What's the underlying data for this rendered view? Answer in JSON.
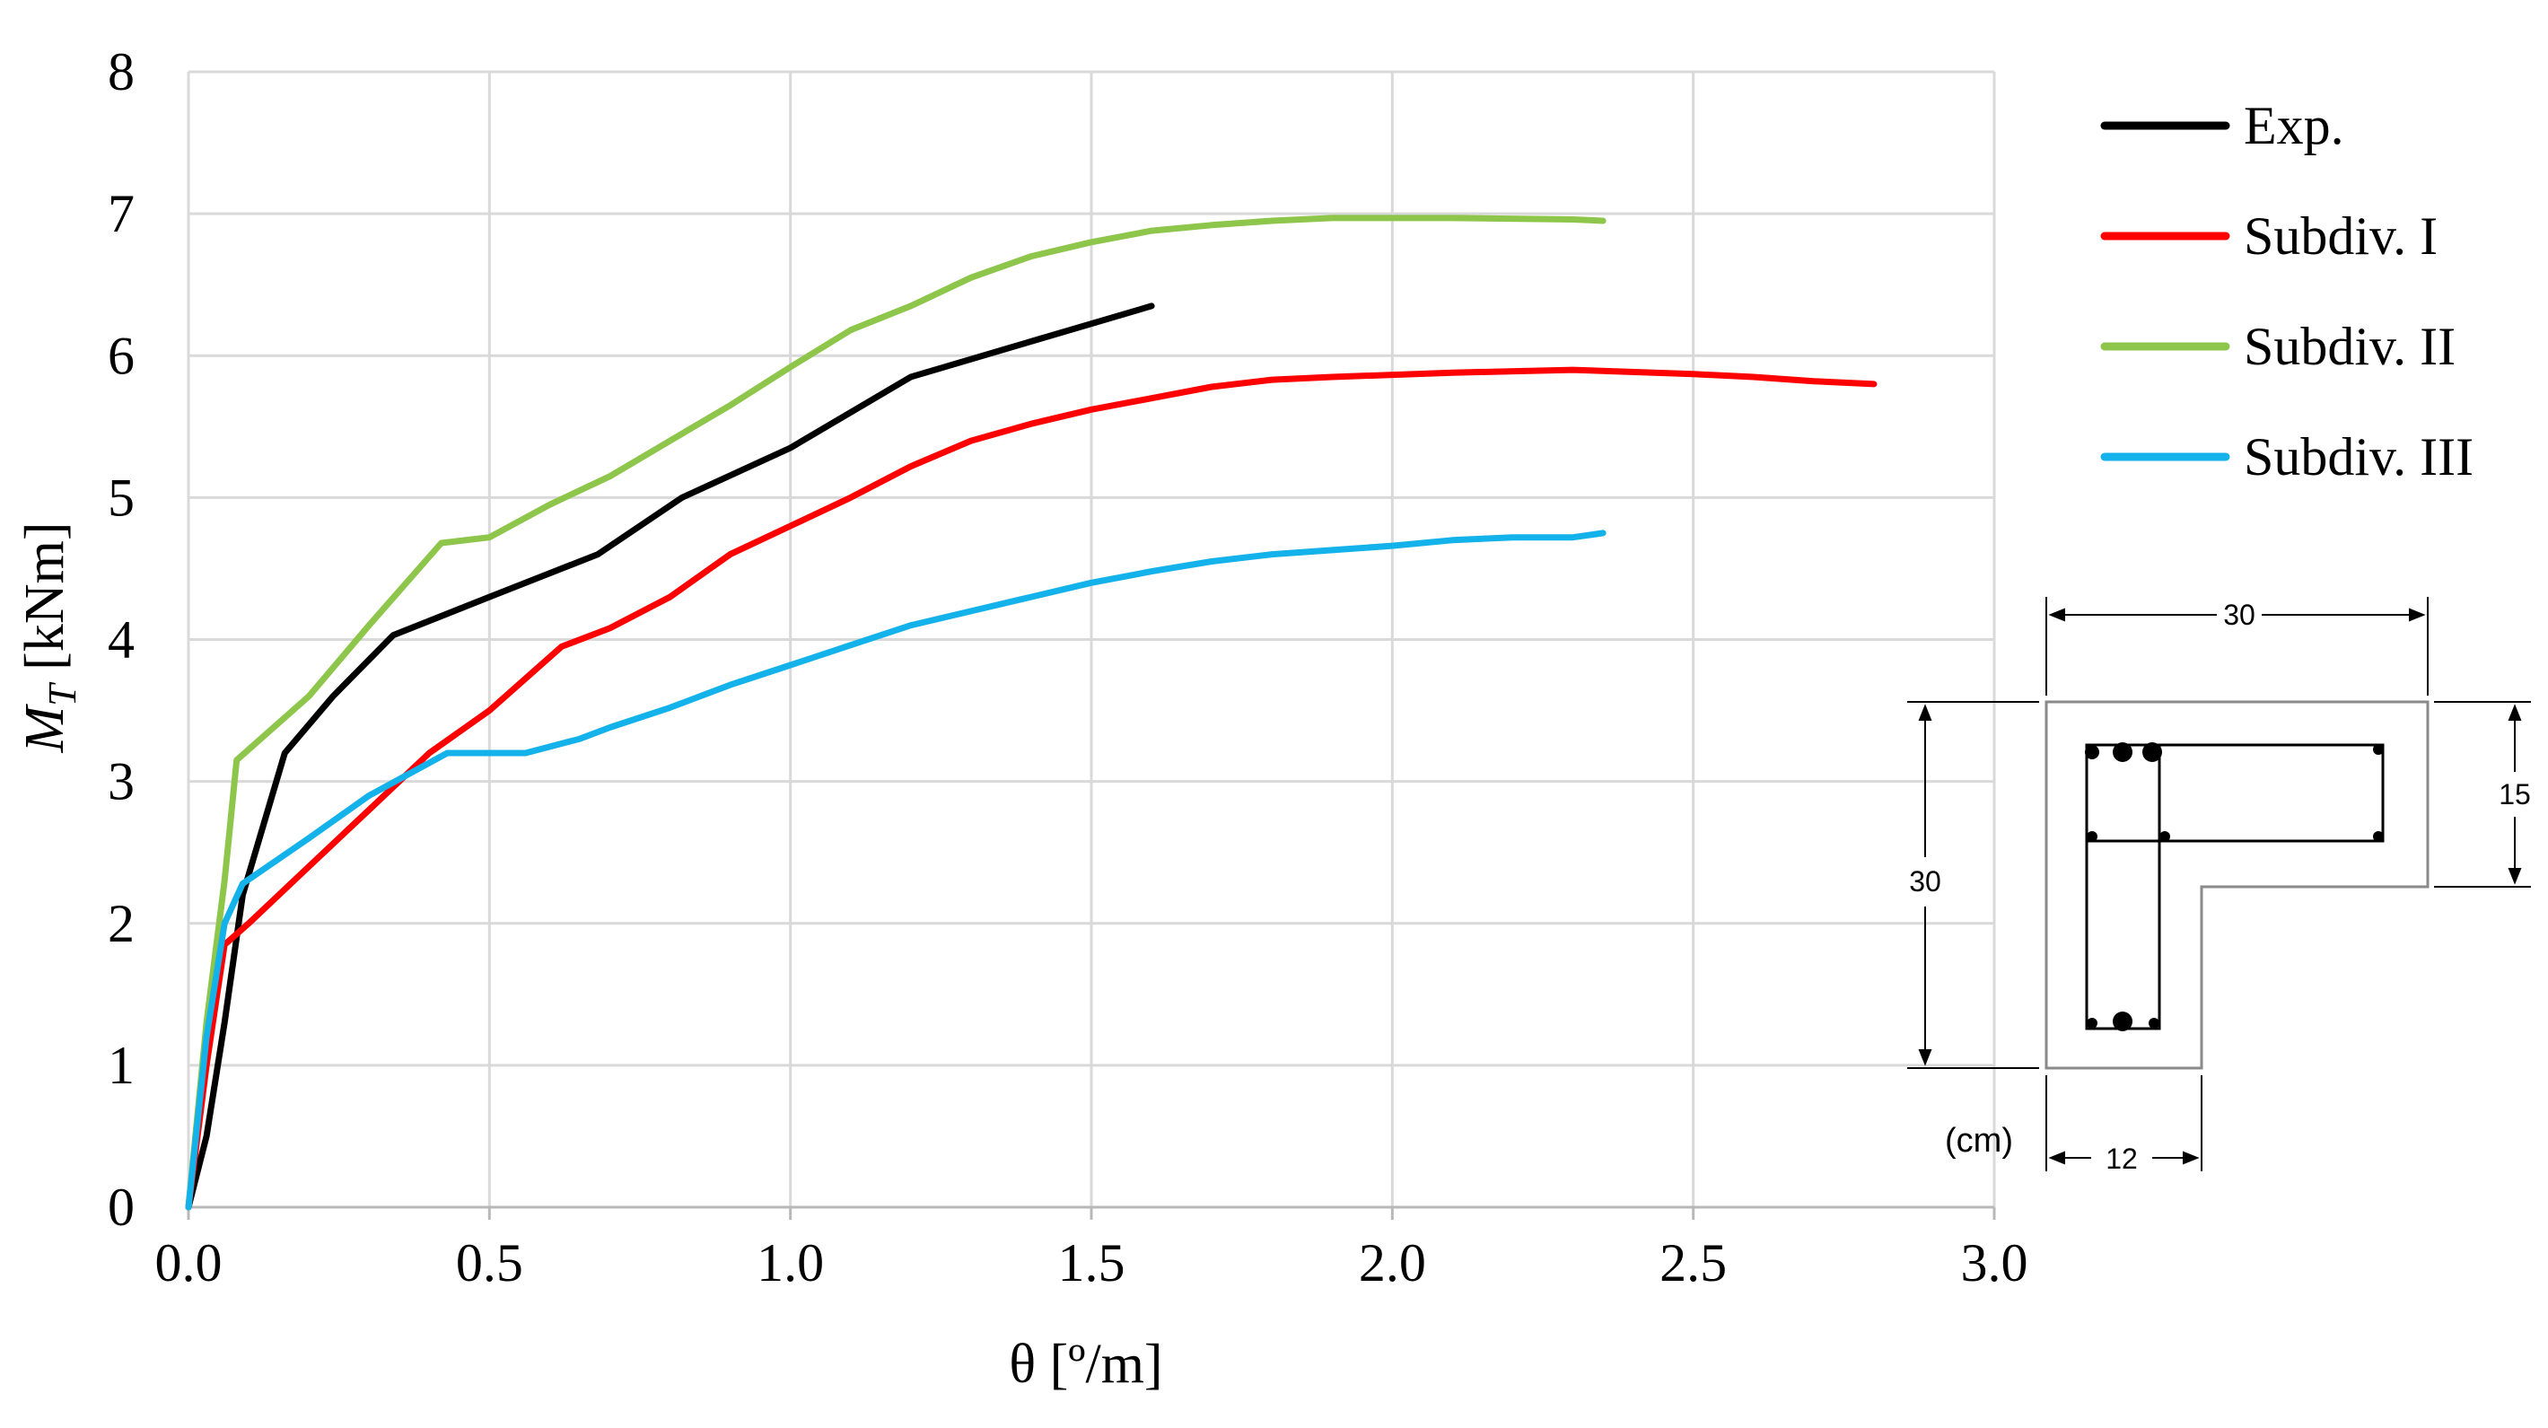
{
  "chart_data": {
    "type": "line",
    "title": "",
    "xlabel": "θ [º/m]",
    "ylabel": "MT [kNm]",
    "ylabel_main": "M",
    "ylabel_sub": "T",
    "ylabel_unit": " [kNm]",
    "xlim": [
      0,
      3.0
    ],
    "ylim": [
      0,
      8
    ],
    "grid": true,
    "legend_position": "top-right",
    "x_ticks": [
      0,
      0.5,
      1.0,
      1.5,
      2.0,
      2.5,
      3.0
    ],
    "x_tick_labels": [
      "0.0",
      "0.5",
      "1.0",
      "1.5",
      "2.0",
      "2.5",
      "3.0"
    ],
    "y_ticks": [
      0,
      1,
      2,
      3,
      4,
      5,
      6,
      7,
      8
    ],
    "y_tick_labels": [
      "0",
      "1",
      "2",
      "3",
      "4",
      "5",
      "6",
      "7",
      "8"
    ],
    "series": [
      {
        "name": "Exp.",
        "color": "#000000",
        "points": [
          [
            0,
            0
          ],
          [
            0.03,
            0.5
          ],
          [
            0.06,
            1.3
          ],
          [
            0.09,
            2.2
          ],
          [
            0.16,
            3.2
          ],
          [
            0.24,
            3.6
          ],
          [
            0.34,
            4.03
          ],
          [
            0.5,
            4.3
          ],
          [
            0.68,
            4.6
          ],
          [
            0.82,
            5.0
          ],
          [
            1.0,
            5.35
          ],
          [
            1.2,
            5.85
          ],
          [
            1.4,
            6.1
          ],
          [
            1.6,
            6.35
          ]
        ]
      },
      {
        "name": "Subdiv. I",
        "color": "#ff0000",
        "points": [
          [
            0,
            0
          ],
          [
            0.03,
            1.0
          ],
          [
            0.06,
            1.85
          ],
          [
            0.1,
            2.0
          ],
          [
            0.2,
            2.4
          ],
          [
            0.3,
            2.8
          ],
          [
            0.4,
            3.2
          ],
          [
            0.5,
            3.5
          ],
          [
            0.62,
            3.95
          ],
          [
            0.7,
            4.08
          ],
          [
            0.8,
            4.3
          ],
          [
            0.9,
            4.6
          ],
          [
            1.0,
            4.8
          ],
          [
            1.1,
            5.0
          ],
          [
            1.2,
            5.22
          ],
          [
            1.3,
            5.4
          ],
          [
            1.4,
            5.52
          ],
          [
            1.5,
            5.62
          ],
          [
            1.6,
            5.7
          ],
          [
            1.7,
            5.78
          ],
          [
            1.8,
            5.83
          ],
          [
            1.9,
            5.85
          ],
          [
            2.1,
            5.88
          ],
          [
            2.3,
            5.9
          ],
          [
            2.5,
            5.87
          ],
          [
            2.6,
            5.85
          ],
          [
            2.7,
            5.82
          ],
          [
            2.8,
            5.8
          ]
        ]
      },
      {
        "name": "Subdiv. II",
        "color": "#8dc64a",
        "points": [
          [
            0,
            0
          ],
          [
            0.03,
            1.3
          ],
          [
            0.06,
            2.3
          ],
          [
            0.08,
            3.15
          ],
          [
            0.2,
            3.6
          ],
          [
            0.3,
            4.1
          ],
          [
            0.42,
            4.68
          ],
          [
            0.5,
            4.72
          ],
          [
            0.6,
            4.95
          ],
          [
            0.7,
            5.15
          ],
          [
            0.8,
            5.4
          ],
          [
            0.9,
            5.65
          ],
          [
            1.0,
            5.92
          ],
          [
            1.1,
            6.18
          ],
          [
            1.2,
            6.35
          ],
          [
            1.3,
            6.55
          ],
          [
            1.4,
            6.7
          ],
          [
            1.5,
            6.8
          ],
          [
            1.6,
            6.88
          ],
          [
            1.7,
            6.92
          ],
          [
            1.8,
            6.95
          ],
          [
            1.9,
            6.97
          ],
          [
            2.1,
            6.97
          ],
          [
            2.3,
            6.96
          ],
          [
            2.35,
            6.95
          ]
        ]
      },
      {
        "name": "Subdiv. III",
        "color": "#14b2ea",
        "points": [
          [
            0,
            0
          ],
          [
            0.03,
            1.2
          ],
          [
            0.06,
            2.0
          ],
          [
            0.09,
            2.28
          ],
          [
            0.2,
            2.6
          ],
          [
            0.3,
            2.9
          ],
          [
            0.43,
            3.2
          ],
          [
            0.56,
            3.2
          ],
          [
            0.65,
            3.3
          ],
          [
            0.7,
            3.38
          ],
          [
            0.8,
            3.52
          ],
          [
            0.9,
            3.68
          ],
          [
            1.0,
            3.82
          ],
          [
            1.1,
            3.96
          ],
          [
            1.2,
            4.1
          ],
          [
            1.3,
            4.2
          ],
          [
            1.4,
            4.3
          ],
          [
            1.5,
            4.4
          ],
          [
            1.6,
            4.48
          ],
          [
            1.7,
            4.55
          ],
          [
            1.8,
            4.6
          ],
          [
            1.9,
            4.63
          ],
          [
            2.0,
            4.66
          ],
          [
            2.1,
            4.7
          ],
          [
            2.2,
            4.72
          ],
          [
            2.3,
            4.72
          ],
          [
            2.35,
            4.75
          ]
        ]
      }
    ]
  },
  "cross_section": {
    "top_width": "30",
    "total_height": "30",
    "flange_height": "15",
    "web_width": "12",
    "units": "(cm)"
  }
}
